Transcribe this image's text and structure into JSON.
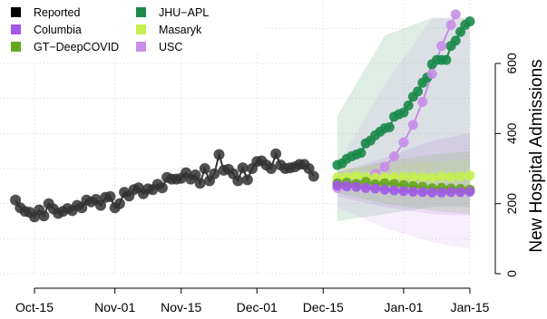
{
  "chart_data": {
    "type": "line",
    "title": "",
    "xlabel": "",
    "ylabel": "New Hospital Admissions",
    "x_ticks": [
      "Oct-15",
      "Nov-01",
      "Nov-15",
      "Dec-01",
      "Dec-15",
      "Jan-01",
      "Jan-15"
    ],
    "y_ticks": [
      0,
      200,
      400,
      600
    ],
    "xlim": [
      "2021-10-09",
      "2022-01-16"
    ],
    "ylim": [
      -20,
      730
    ],
    "y_axis_position": "right",
    "grid": true,
    "legend_position": "top-left",
    "legend": [
      {
        "name": "Reported",
        "color": "#000000",
        "marker": "square"
      },
      {
        "name": "Columbia",
        "color": "#a259e6",
        "marker": "square"
      },
      {
        "name": "GT−DeepCOVID",
        "color": "#66a61e",
        "marker": "square"
      },
      {
        "name": "JHU−APL",
        "color": "#1b8a4a",
        "marker": "square"
      },
      {
        "name": "Masaryk",
        "color": "#c5f04f",
        "marker": "square"
      },
      {
        "name": "USC",
        "color": "#c88ee8",
        "marker": "square"
      }
    ],
    "series": [
      {
        "name": "Reported",
        "color": "#333333",
        "x": [
          "2021-10-11",
          "2021-10-12",
          "2021-10-13",
          "2021-10-14",
          "2021-10-15",
          "2021-10-16",
          "2021-10-17",
          "2021-10-18",
          "2021-10-19",
          "2021-10-20",
          "2021-10-21",
          "2021-10-22",
          "2021-10-23",
          "2021-10-24",
          "2021-10-25",
          "2021-10-26",
          "2021-10-27",
          "2021-10-28",
          "2021-10-29",
          "2021-10-30",
          "2021-10-31",
          "2021-11-01",
          "2021-11-02",
          "2021-11-03",
          "2021-11-04",
          "2021-11-05",
          "2021-11-06",
          "2021-11-07",
          "2021-11-08",
          "2021-11-09",
          "2021-11-10",
          "2021-11-11",
          "2021-11-12",
          "2021-11-13",
          "2021-11-14",
          "2021-11-15",
          "2021-11-16",
          "2021-11-17",
          "2021-11-18",
          "2021-11-19",
          "2021-11-20",
          "2021-11-21",
          "2021-11-22",
          "2021-11-23",
          "2021-11-24",
          "2021-11-25",
          "2021-11-26",
          "2021-11-27",
          "2021-11-28",
          "2021-11-29",
          "2021-11-30",
          "2021-12-01",
          "2021-12-02",
          "2021-12-03",
          "2021-12-04",
          "2021-12-05",
          "2021-12-06",
          "2021-12-07",
          "2021-12-08",
          "2021-12-09",
          "2021-12-10",
          "2021-12-11",
          "2021-12-12",
          "2021-12-13"
        ],
        "y": [
          210,
          188,
          178,
          175,
          162,
          182,
          165,
          200,
          185,
          172,
          178,
          186,
          180,
          195,
          188,
          210,
          205,
          212,
          195,
          218,
          220,
          188,
          200,
          232,
          222,
          240,
          245,
          228,
          242,
          240,
          255,
          245,
          275,
          270,
          270,
          272,
          288,
          270,
          282,
          258,
          300,
          265,
          285,
          340,
          295,
          298,
          285,
          265,
          302,
          268,
          300,
          320,
          322,
          310,
          300,
          342,
          310,
          300,
          302,
          305,
          312,
          312,
          300,
          278
        ]
      },
      {
        "name": "JHU−APL",
        "color": "#1b8a4a",
        "x": [
          "2021-12-18",
          "2021-12-19",
          "2021-12-20",
          "2021-12-21",
          "2021-12-22",
          "2021-12-23",
          "2021-12-24",
          "2021-12-25",
          "2021-12-26",
          "2021-12-27",
          "2021-12-28",
          "2021-12-29",
          "2021-12-30",
          "2021-12-31",
          "2022-01-01",
          "2022-01-02",
          "2022-01-03",
          "2022-01-04",
          "2022-01-05",
          "2022-01-06",
          "2022-01-07",
          "2022-01-08",
          "2022-01-09",
          "2022-01-10",
          "2022-01-11",
          "2022-01-12",
          "2022-01-13",
          "2022-01-14",
          "2022-01-15"
        ],
        "y": [
          310,
          315,
          328,
          335,
          340,
          345,
          372,
          380,
          395,
          405,
          415,
          418,
          448,
          455,
          460,
          480,
          505,
          520,
          545,
          560,
          598,
          610,
          610,
          610,
          650,
          665,
          690,
          710,
          720
        ]
      },
      {
        "name": "USC",
        "color": "#c88ee8",
        "x": [
          "2021-12-18",
          "2021-12-20",
          "2021-12-22",
          "2021-12-24",
          "2021-12-26",
          "2021-12-28",
          "2021-12-30",
          "2022-01-01",
          "2022-01-03",
          "2022-01-05",
          "2022-01-07",
          "2022-01-09",
          "2022-01-11",
          "2022-01-12"
        ],
        "y": [
          245,
          248,
          258,
          268,
          285,
          305,
          335,
          375,
          425,
          490,
          570,
          650,
          710,
          740
        ]
      },
      {
        "name": "Masaryk",
        "color": "#c5f04f",
        "x": [
          "2021-12-18",
          "2021-12-20",
          "2021-12-22",
          "2021-12-24",
          "2021-12-26",
          "2021-12-28",
          "2021-12-30",
          "2022-01-01",
          "2022-01-03",
          "2022-01-05",
          "2022-01-07",
          "2022-01-09",
          "2022-01-11",
          "2022-01-13",
          "2022-01-15"
        ],
        "y": [
          275,
          276,
          278,
          275,
          274,
          273,
          276,
          277,
          276,
          275,
          274,
          277,
          276,
          278,
          280
        ]
      },
      {
        "name": "GT−DeepCOVID",
        "color": "#66a61e",
        "x": [
          "2021-12-18",
          "2021-12-20",
          "2021-12-22",
          "2021-12-24",
          "2021-12-26",
          "2021-12-28",
          "2021-12-30",
          "2022-01-01",
          "2022-01-03",
          "2022-01-05",
          "2022-01-07",
          "2022-01-09",
          "2022-01-11",
          "2022-01-13",
          "2022-01-15"
        ],
        "y": [
          258,
          260,
          256,
          262,
          255,
          258,
          256,
          253,
          250,
          248,
          244,
          245,
          243,
          242,
          240
        ]
      },
      {
        "name": "Columbia",
        "color": "#a259e6",
        "x": [
          "2021-12-18",
          "2021-12-20",
          "2021-12-22",
          "2021-12-24",
          "2021-12-26",
          "2021-12-28",
          "2021-12-30",
          "2022-01-01",
          "2022-01-03",
          "2022-01-05",
          "2022-01-07",
          "2022-01-09",
          "2022-01-11",
          "2022-01-13",
          "2022-01-15"
        ],
        "y": [
          252,
          250,
          248,
          245,
          243,
          240,
          238,
          236,
          234,
          233,
          232,
          232,
          233,
          233,
          234
        ]
      }
    ],
    "bands": [
      {
        "name": "JHU−APL",
        "color": "#1b8a4a",
        "x": [
          "2021-12-18",
          "2021-12-28",
          "2022-01-07",
          "2022-01-15"
        ],
        "lower": [
          150,
          170,
          190,
          190
        ],
        "upper": [
          450,
          680,
          730,
          730
        ]
      },
      {
        "name": "USC",
        "color": "#c88ee8",
        "x": [
          "2021-12-18",
          "2021-12-28",
          "2022-01-07",
          "2022-01-15"
        ],
        "lower": [
          190,
          130,
          90,
          70
        ],
        "upper": [
          310,
          540,
          730,
          730
        ]
      },
      {
        "name": "Columbia",
        "color": "#a259e6",
        "x": [
          "2021-12-18",
          "2021-12-28",
          "2022-01-07",
          "2022-01-15"
        ],
        "lower": [
          220,
          190,
          170,
          165
        ],
        "upper": [
          290,
          330,
          380,
          400
        ]
      },
      {
        "name": "GT−DeepCOVID",
        "color": "#66a61e",
        "x": [
          "2021-12-18",
          "2021-12-28",
          "2022-01-07",
          "2022-01-15"
        ],
        "lower": [
          230,
          200,
          180,
          170
        ],
        "upper": [
          290,
          320,
          340,
          350
        ]
      },
      {
        "name": "Masaryk",
        "color": "#c5f04f",
        "x": [
          "2021-12-18",
          "2021-12-28",
          "2022-01-07",
          "2022-01-15"
        ],
        "lower": [
          255,
          245,
          240,
          235
        ],
        "upper": [
          300,
          310,
          320,
          325
        ]
      }
    ]
  }
}
